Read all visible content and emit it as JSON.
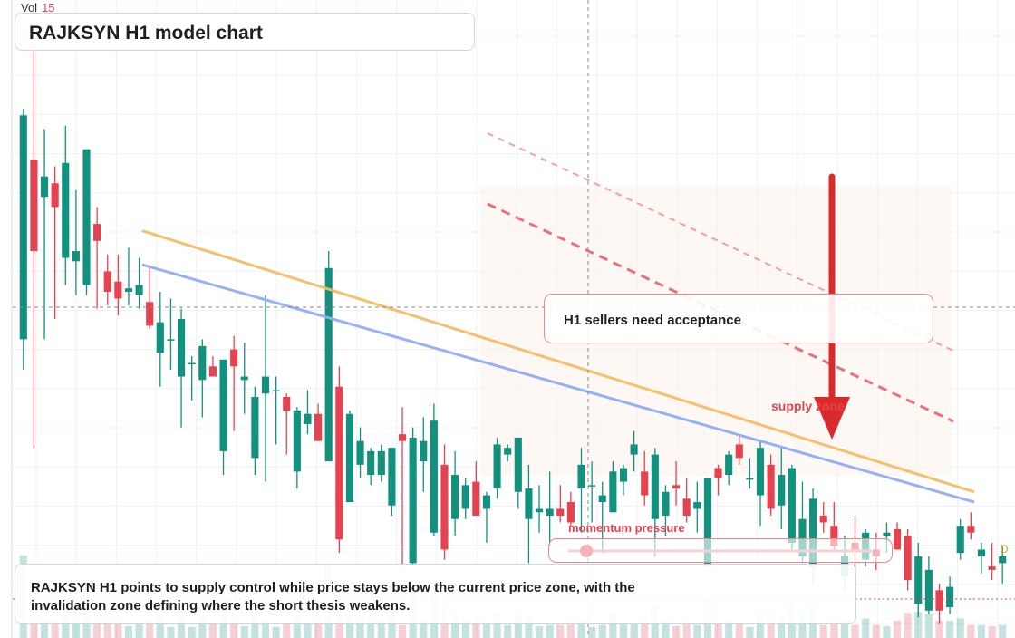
{
  "title": "RAJKSYN H1 model chart",
  "volume": {
    "label": "Vol",
    "value": "15"
  },
  "callout": "H1 sellers need acceptance",
  "supply_label": "supply zone",
  "momentum": {
    "label": "momentum pressure",
    "value": 0.06
  },
  "summary": "RAJKSYN H1 points to supply control while price stays below the current price zone, with the invalidation zone defining where the short thesis weakens.",
  "badge": "D",
  "colors": {
    "up": "#12917f",
    "down": "#e5434f",
    "ma_fast": "#f5bc64",
    "ma_slow": "#91aef3",
    "accent": "#e5434f"
  },
  "chart_data": {
    "type": "candlestick",
    "title": "RAJKSYN H1 model chart",
    "candles": [
      {
        "o": 112,
        "h": 180,
        "l": 103,
        "c": 178
      },
      {
        "o": 165,
        "h": 198,
        "l": 80,
        "c": 138
      },
      {
        "o": 154,
        "h": 174,
        "l": 112,
        "c": 160
      },
      {
        "o": 158,
        "h": 163,
        "l": 118,
        "c": 151
      },
      {
        "o": 136,
        "h": 175,
        "l": 128,
        "c": 164
      },
      {
        "o": 135,
        "h": 156,
        "l": 125,
        "c": 138
      },
      {
        "o": 128,
        "h": 168,
        "l": 125,
        "c": 168
      },
      {
        "o": 146,
        "h": 151,
        "l": 121,
        "c": 141
      },
      {
        "o": 132,
        "h": 137,
        "l": 122,
        "c": 126
      },
      {
        "o": 129,
        "h": 137,
        "l": 119,
        "c": 124
      },
      {
        "o": 126,
        "h": 139,
        "l": 122,
        "c": 127
      },
      {
        "o": 125,
        "h": 136,
        "l": 121,
        "c": 128
      },
      {
        "o": 123,
        "h": 133,
        "l": 115,
        "c": 116
      },
      {
        "o": 108,
        "h": 126,
        "l": 98,
        "c": 117
      },
      {
        "o": 112,
        "h": 124,
        "l": 103,
        "c": 112
      },
      {
        "o": 101,
        "h": 121,
        "l": 86,
        "c": 118
      },
      {
        "o": 105,
        "h": 107,
        "l": 94,
        "c": 105
      },
      {
        "o": 100,
        "h": 112,
        "l": 89,
        "c": 110
      },
      {
        "o": 104,
        "h": 107,
        "l": 102,
        "c": 101
      },
      {
        "o": 79,
        "h": 106,
        "l": 72,
        "c": 106
      },
      {
        "o": 109,
        "h": 113,
        "l": 85,
        "c": 104
      },
      {
        "o": 100,
        "h": 111,
        "l": 90,
        "c": 101
      },
      {
        "o": 77,
        "h": 98,
        "l": 72,
        "c": 95
      },
      {
        "o": 96,
        "h": 125,
        "l": 70,
        "c": 101
      },
      {
        "o": 97,
        "h": 101,
        "l": 81,
        "c": 97
      },
      {
        "o": 95,
        "h": 96,
        "l": 78,
        "c": 91
      },
      {
        "o": 73,
        "h": 92,
        "l": 68,
        "c": 91
      },
      {
        "o": 87,
        "h": 97,
        "l": 84,
        "c": 90
      },
      {
        "o": 90,
        "h": 93,
        "l": 82,
        "c": 82
      },
      {
        "o": 76,
        "h": 138,
        "l": 76,
        "c": 133
      },
      {
        "o": 98,
        "h": 104,
        "l": 49,
        "c": 53
      },
      {
        "o": 64,
        "h": 91,
        "l": 64,
        "c": 90
      },
      {
        "o": 75,
        "h": 86,
        "l": 71,
        "c": 82
      },
      {
        "o": 72,
        "h": 80,
        "l": 69,
        "c": 79
      },
      {
        "o": 72,
        "h": 81,
        "l": 70,
        "c": 79
      },
      {
        "o": 63,
        "h": 80,
        "l": 60,
        "c": 80
      },
      {
        "o": 84,
        "h": 92,
        "l": 45,
        "c": 82
      },
      {
        "o": 46,
        "h": 86,
        "l": 45,
        "c": 83
      },
      {
        "o": 76,
        "h": 89,
        "l": 67,
        "c": 82
      },
      {
        "o": 55,
        "h": 93,
        "l": 54,
        "c": 88
      },
      {
        "o": 75,
        "h": 81,
        "l": 47,
        "c": 50
      },
      {
        "o": 59,
        "h": 79,
        "l": 54,
        "c": 72
      },
      {
        "o": 62,
        "h": 71,
        "l": 59,
        "c": 69
      },
      {
        "o": 70,
        "h": 76,
        "l": 60,
        "c": 60
      },
      {
        "o": 62,
        "h": 67,
        "l": 52,
        "c": 66
      },
      {
        "o": 68,
        "h": 83,
        "l": 65,
        "c": 81
      },
      {
        "o": 78,
        "h": 81,
        "l": 76,
        "c": 80
      },
      {
        "o": 67,
        "h": 83,
        "l": 62,
        "c": 83
      },
      {
        "o": 59,
        "h": 75,
        "l": 46,
        "c": 68
      },
      {
        "o": 61,
        "h": 69,
        "l": 55,
        "c": 62
      },
      {
        "o": 60,
        "h": 73,
        "l": 51,
        "c": 62
      },
      {
        "o": 62,
        "h": 69,
        "l": 58,
        "c": 60
      },
      {
        "o": 64,
        "h": 67,
        "l": 57,
        "c": 58
      },
      {
        "o": 68,
        "h": 80,
        "l": 55,
        "c": 75
      },
      {
        "o": 69,
        "h": 76,
        "l": 58,
        "c": 69
      },
      {
        "o": 64,
        "h": 70,
        "l": 49,
        "c": 66
      },
      {
        "o": 61,
        "h": 76,
        "l": 61,
        "c": 73
      },
      {
        "o": 70,
        "h": 75,
        "l": 66,
        "c": 74
      },
      {
        "o": 78,
        "h": 85,
        "l": 73,
        "c": 81
      },
      {
        "o": 73,
        "h": 79,
        "l": 63,
        "c": 66
      },
      {
        "o": 59,
        "h": 80,
        "l": 48,
        "c": 78
      },
      {
        "o": 60,
        "h": 69,
        "l": 54,
        "c": 67
      },
      {
        "o": 69,
        "h": 76,
        "l": 63,
        "c": 68
      },
      {
        "o": 65,
        "h": 71,
        "l": 58,
        "c": 60
      },
      {
        "o": 62,
        "h": 70,
        "l": 55,
        "c": 64
      },
      {
        "o": 45,
        "h": 71,
        "l": 45,
        "c": 71
      },
      {
        "o": 74,
        "h": 75,
        "l": 66,
        "c": 71
      },
      {
        "o": 72,
        "h": 79,
        "l": 69,
        "c": 78
      },
      {
        "o": 81,
        "h": 84,
        "l": 75,
        "c": 77
      },
      {
        "o": 71,
        "h": 77,
        "l": 68,
        "c": 71
      },
      {
        "o": 66,
        "h": 82,
        "l": 57,
        "c": 80
      },
      {
        "o": 75,
        "h": 78,
        "l": 60,
        "c": 62
      },
      {
        "o": 63,
        "h": 80,
        "l": 56,
        "c": 72
      },
      {
        "o": 52,
        "h": 75,
        "l": 50,
        "c": 74
      },
      {
        "o": 48,
        "h": 70,
        "l": 46,
        "c": 59
      },
      {
        "o": 45,
        "h": 68,
        "l": 40,
        "c": 65
      },
      {
        "o": 60,
        "h": 64,
        "l": 55,
        "c": 58
      },
      {
        "o": 57,
        "h": 64,
        "l": 50,
        "c": 51
      },
      {
        "o": 42,
        "h": 54,
        "l": 38,
        "c": 48
      },
      {
        "o": 52,
        "h": 60,
        "l": 44,
        "c": 50
      },
      {
        "o": 47,
        "h": 56,
        "l": 45,
        "c": 55
      },
      {
        "o": 50,
        "h": 55,
        "l": 44,
        "c": 48
      },
      {
        "o": 54,
        "h": 58,
        "l": 49,
        "c": 55
      },
      {
        "o": 56,
        "h": 58,
        "l": 50,
        "c": 50
      },
      {
        "o": 54,
        "h": 56,
        "l": 38,
        "c": 41
      },
      {
        "o": 34,
        "h": 52,
        "l": 30,
        "c": 48
      },
      {
        "o": 32,
        "h": 48,
        "l": 31,
        "c": 44
      },
      {
        "o": 38,
        "h": 40,
        "l": 28,
        "c": 32
      },
      {
        "o": 33,
        "h": 42,
        "l": 31,
        "c": 39
      },
      {
        "o": 49,
        "h": 59,
        "l": 47,
        "c": 57
      },
      {
        "o": 57,
        "h": 61,
        "l": 53,
        "c": 55
      },
      {
        "o": 48,
        "h": 52,
        "l": 43,
        "c": 50
      },
      {
        "o": 45,
        "h": 52,
        "l": 41,
        "c": 44
      },
      {
        "o": 46,
        "h": 51,
        "l": 40,
        "c": 48
      }
    ],
    "moving_averages": [
      {
        "start": 144,
        "end": 67
      },
      {
        "start": 134,
        "end": 64
      }
    ],
    "annotations": [
      "H1 sellers need acceptance",
      "supply zone",
      "momentum pressure"
    ]
  }
}
